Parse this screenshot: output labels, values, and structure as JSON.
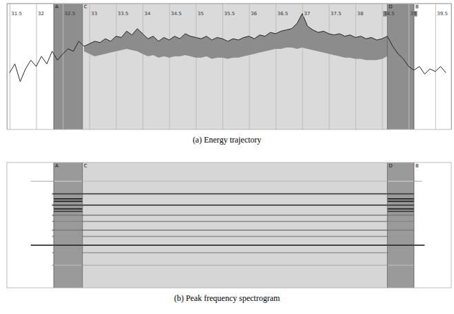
{
  "chart_data": [
    {
      "type": "line",
      "title": "(a) Energy trajectory",
      "xlim": [
        31.45,
        39.8
      ],
      "ylim": [
        0,
        1
      ],
      "xticks": [
        31.5,
        32,
        32.5,
        33,
        33.5,
        34,
        34.5,
        35,
        35.5,
        36,
        36.5,
        37,
        37.5,
        38,
        38.5,
        39,
        39.5
      ],
      "grid": true,
      "tick_labels": "x",
      "markers": [
        {
          "label": "A",
          "value": 32.33
        },
        {
          "label": "C",
          "value": 32.87
        },
        {
          "label": "D",
          "value": 38.6
        },
        {
          "label": "B",
          "value": 39.1
        }
      ],
      "regions": [
        {
          "from": "A",
          "to": "C",
          "color": "#8e8e8e"
        },
        {
          "from": "C",
          "to": "D",
          "color": "#dadada"
        },
        {
          "from": "D",
          "to": "B",
          "color": "#8e8e8e"
        }
      ],
      "x": [
        31.5,
        31.6,
        31.7,
        31.8,
        31.9,
        32.0,
        32.1,
        32.2,
        32.3,
        32.4,
        32.5,
        32.6,
        32.7,
        32.8,
        32.9,
        33.0,
        33.1,
        33.2,
        33.3,
        33.4,
        33.5,
        33.6,
        33.7,
        33.8,
        33.9,
        34.0,
        34.1,
        34.2,
        34.3,
        34.4,
        34.5,
        34.6,
        34.7,
        34.8,
        34.9,
        35.0,
        35.1,
        35.2,
        35.3,
        35.4,
        35.5,
        35.6,
        35.7,
        35.8,
        35.9,
        36.0,
        36.1,
        36.2,
        36.3,
        36.4,
        36.5,
        36.6,
        36.7,
        36.8,
        36.9,
        37.0,
        37.1,
        37.2,
        37.3,
        37.4,
        37.5,
        37.6,
        37.7,
        37.8,
        37.9,
        38.0,
        38.1,
        38.2,
        38.3,
        38.4,
        38.5,
        38.6,
        38.7,
        38.8,
        38.9,
        39.0,
        39.1,
        39.2,
        39.3,
        39.4,
        39.5,
        39.6,
        39.7
      ],
      "series": [
        {
          "type": "line",
          "color": "#222222",
          "values": [
            0.45,
            0.52,
            0.38,
            0.48,
            0.55,
            0.5,
            0.58,
            0.52,
            0.62,
            0.55,
            0.6,
            0.64,
            0.62,
            0.7,
            0.66,
            0.68,
            0.7,
            0.69,
            0.72,
            0.7,
            0.74,
            0.73,
            0.78,
            0.75,
            0.8,
            0.76,
            0.72,
            0.74,
            0.7,
            0.73,
            0.71,
            0.74,
            0.72,
            0.76,
            0.74,
            0.73,
            0.72,
            0.74,
            0.71,
            0.73,
            0.72,
            0.7,
            0.72,
            0.71,
            0.73,
            0.74,
            0.72,
            0.75,
            0.74,
            0.77,
            0.76,
            0.78,
            0.79,
            0.8,
            0.84,
            0.92,
            0.82,
            0.79,
            0.77,
            0.78,
            0.76,
            0.75,
            0.76,
            0.74,
            0.75,
            0.73,
            0.74,
            0.72,
            0.73,
            0.71,
            0.72,
            0.74,
            0.66,
            0.6,
            0.56,
            0.5,
            0.47,
            0.5,
            0.44,
            0.48,
            0.46,
            0.5,
            0.45
          ]
        },
        {
          "type": "area",
          "color": "#8c8c8c",
          "values": [
            null,
            null,
            null,
            null,
            null,
            null,
            null,
            null,
            null,
            null,
            null,
            null,
            null,
            null,
            0.62,
            0.6,
            0.58,
            0.59,
            0.6,
            0.61,
            0.62,
            0.63,
            0.64,
            0.63,
            0.62,
            0.6,
            0.58,
            0.59,
            0.57,
            0.58,
            0.57,
            0.58,
            0.58,
            0.59,
            0.58,
            0.57,
            0.57,
            0.58,
            0.56,
            0.57,
            0.57,
            0.56,
            0.57,
            0.57,
            0.58,
            0.59,
            0.6,
            0.61,
            0.62,
            0.63,
            0.64,
            0.64,
            0.65,
            0.65,
            0.64,
            0.65,
            0.64,
            0.63,
            0.62,
            0.61,
            0.6,
            0.59,
            0.58,
            0.57,
            0.57,
            0.56,
            0.56,
            0.55,
            0.55,
            0.55,
            0.56,
            0.58,
            null,
            null,
            null,
            null,
            null,
            null,
            null,
            null,
            null,
            null,
            null
          ]
        }
      ]
    },
    {
      "type": "spectrogram",
      "title": "(b) Peak frequency spectrogram",
      "xlim": [
        31.45,
        39.8
      ],
      "ylim": [
        0,
        1
      ],
      "grid": false,
      "tick_labels": false,
      "markers": [
        {
          "label": "A",
          "value": 32.33
        },
        {
          "label": "C",
          "value": 32.87
        },
        {
          "label": "D",
          "value": 38.6
        },
        {
          "label": "B",
          "value": 39.1
        }
      ],
      "regions": [
        {
          "from": "A",
          "to": "C",
          "color": "#9a9a9a"
        },
        {
          "from": "C",
          "to": "D",
          "color": "#d6d6d6"
        },
        {
          "from": "D",
          "to": "B",
          "color": "#9a9a9a"
        }
      ],
      "tracks": [
        {
          "start": 31.9,
          "end": 39.25,
          "frequency": 0.85,
          "intensity": 0.35
        },
        {
          "start": 32.3,
          "end": 39.1,
          "frequency": 0.75,
          "intensity": 0.85
        },
        {
          "start": 32.3,
          "end": 39.1,
          "frequency": 0.66,
          "intensity": 0.8
        },
        {
          "start": 32.3,
          "end": 39.1,
          "frequency": 0.58,
          "intensity": 0.6
        },
        {
          "start": 32.3,
          "end": 39.1,
          "frequency": 0.53,
          "intensity": 0.55
        },
        {
          "start": 32.3,
          "end": 39.1,
          "frequency": 0.46,
          "intensity": 0.6
        },
        {
          "start": 32.3,
          "end": 39.1,
          "frequency": 0.41,
          "intensity": 0.5
        },
        {
          "start": 31.9,
          "end": 39.3,
          "frequency": 0.34,
          "intensity": 0.85
        },
        {
          "start": 32.3,
          "end": 39.1,
          "frequency": 0.28,
          "intensity": 0.5
        },
        {
          "start": 32.3,
          "end": 39.1,
          "frequency": 0.18,
          "intensity": 0.4
        },
        {
          "start": 32.33,
          "end": 32.87,
          "frequency": 0.71,
          "intensity": 0.95
        },
        {
          "start": 32.33,
          "end": 32.87,
          "frequency": 0.69,
          "intensity": 0.9
        },
        {
          "start": 32.33,
          "end": 32.87,
          "frequency": 0.63,
          "intensity": 0.9
        },
        {
          "start": 32.33,
          "end": 32.87,
          "frequency": 0.61,
          "intensity": 0.85
        },
        {
          "start": 38.6,
          "end": 39.1,
          "frequency": 0.71,
          "intensity": 0.95
        },
        {
          "start": 38.6,
          "end": 39.1,
          "frequency": 0.69,
          "intensity": 0.9
        },
        {
          "start": 38.6,
          "end": 39.1,
          "frequency": 0.63,
          "intensity": 0.9
        },
        {
          "start": 38.6,
          "end": 39.1,
          "frequency": 0.61,
          "intensity": 0.85
        }
      ]
    }
  ]
}
